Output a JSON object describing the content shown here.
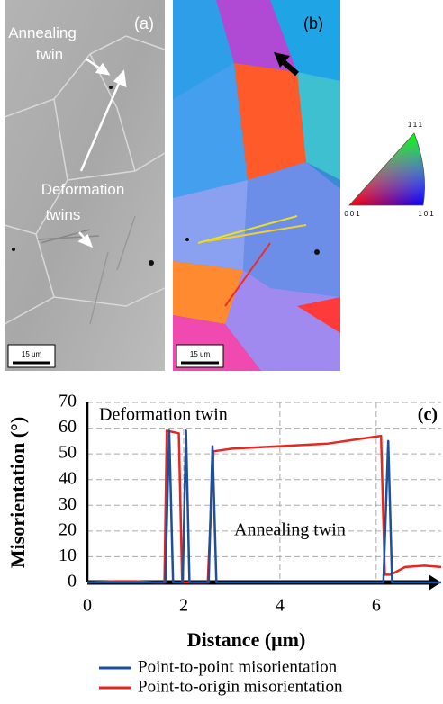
{
  "images": {
    "a": {
      "label": "(a)",
      "annotations": [
        "Annealing",
        "twin",
        "Deformation",
        "twins"
      ],
      "scale_bar": "15 um"
    },
    "b": {
      "label": "(b)",
      "scale_bar": "15 um"
    },
    "ipf_legend": {
      "labels": [
        "111",
        "001",
        "101"
      ]
    }
  },
  "chart_data": {
    "type": "line",
    "x_label": "Distance (μm)",
    "y_label": "Misorientation (°)",
    "annotations": [
      "Deformation twin",
      "Annealing twin",
      "(c)"
    ],
    "xlim": [
      0,
      7.35
    ],
    "xticks": [
      0,
      2,
      4,
      6
    ],
    "ylim": [
      0,
      70
    ],
    "yticks": [
      0,
      10,
      20,
      30,
      40,
      50,
      60,
      70
    ],
    "grid": true,
    "series": [
      {
        "name": "Point-to-point misorientation",
        "color": "#1f4e9a",
        "x": [
          0,
          0.6,
          1.62,
          1.7,
          1.78,
          1.98,
          2.05,
          2.12,
          2.52,
          2.6,
          2.68,
          6.15,
          6.25,
          6.33,
          7.35
        ],
        "values": [
          0,
          0,
          0,
          59,
          0,
          0,
          59,
          0,
          0,
          53,
          0,
          0,
          55,
          0,
          0
        ]
      },
      {
        "name": "Point-to-origin misorientation",
        "color": "#e8251f",
        "x": [
          0,
          0.6,
          1.0,
          1.4,
          1.6,
          1.65,
          1.9,
          1.97,
          2.5,
          2.62,
          3,
          4,
          5,
          6.1,
          6.18,
          6.3,
          6.6,
          7,
          7.35
        ],
        "values": [
          0,
          0.5,
          0.5,
          0,
          0,
          59,
          58,
          0,
          0,
          51,
          52,
          53,
          54,
          57,
          3,
          3,
          6,
          6.5,
          6
        ]
      }
    ]
  }
}
